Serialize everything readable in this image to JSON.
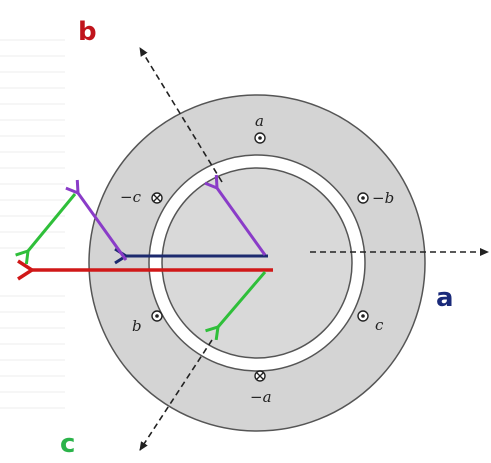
{
  "labels": {
    "axis_a": "a",
    "axis_b": "b",
    "axis_c": "c",
    "coil_a_top": "a",
    "coil_minus_b": "−b",
    "coil_c": "c",
    "coil_minus_a": "−a",
    "coil_b": "b",
    "coil_minus_c": "−c"
  },
  "colors": {
    "axis_a_label": "#1a2a7a",
    "axis_b_label": "#c0141c",
    "axis_c_label": "#2bb34a",
    "stator": "#d4d4d4",
    "rotor": "#d9d9d9",
    "red_arrow": "#d01818",
    "blue_arrow": "#1c2a6e",
    "purple_arrow": "#8a3cc8",
    "green_arrow": "#2fbf3a"
  },
  "icons": {
    "dot_conductor": "circle-dot-icon",
    "cross_conductor": "circle-cross-icon"
  }
}
